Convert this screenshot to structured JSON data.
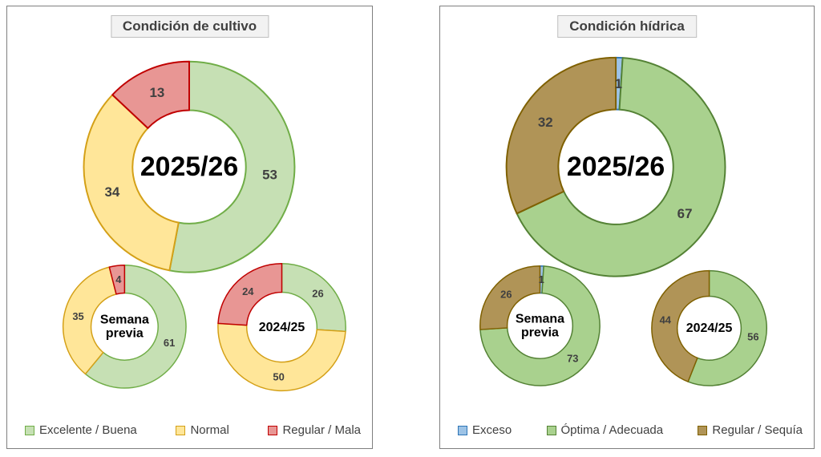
{
  "label_color": "#404040",
  "center_label_color": "#000000",
  "chart_data": [
    {
      "type": "pie",
      "subtype": "donut-multi",
      "title": "Condición de cultivo",
      "legend_position": "bottom",
      "categories": [
        "Excelente / Buena",
        "Normal",
        "Regular / Mala"
      ],
      "fills": [
        "#c6e0b4",
        "#ffe699",
        "#e89694"
      ],
      "strokes": [
        "#70ad47",
        "#d4a017",
        "#c00000"
      ],
      "donuts": [
        {
          "role": "main",
          "center_label": "2025/26",
          "values": [
            53,
            34,
            13
          ]
        },
        {
          "role": "small-left",
          "center_label": "Semana\nprevia",
          "values": [
            61,
            35,
            4
          ]
        },
        {
          "role": "small-right",
          "center_label": "2024/25",
          "values": [
            26,
            50,
            24
          ]
        }
      ]
    },
    {
      "type": "pie",
      "subtype": "donut-multi",
      "title": "Condición hídrica",
      "legend_position": "bottom",
      "categories": [
        "Exceso",
        "Óptima / Adecuada",
        "Regular / Sequía"
      ],
      "fills": [
        "#9dc3e6",
        "#a9d18e",
        "#b09457"
      ],
      "strokes": [
        "#2e75b6",
        "#548235",
        "#7f6000"
      ],
      "donuts": [
        {
          "role": "main",
          "center_label": "2025/26",
          "values": [
            1,
            67,
            32
          ]
        },
        {
          "role": "small-left",
          "center_label": "Semana\nprevia",
          "values": [
            1,
            73,
            26
          ]
        },
        {
          "role": "small-right",
          "center_label": "2024/25",
          "values": [
            0,
            56,
            44
          ]
        }
      ]
    }
  ]
}
